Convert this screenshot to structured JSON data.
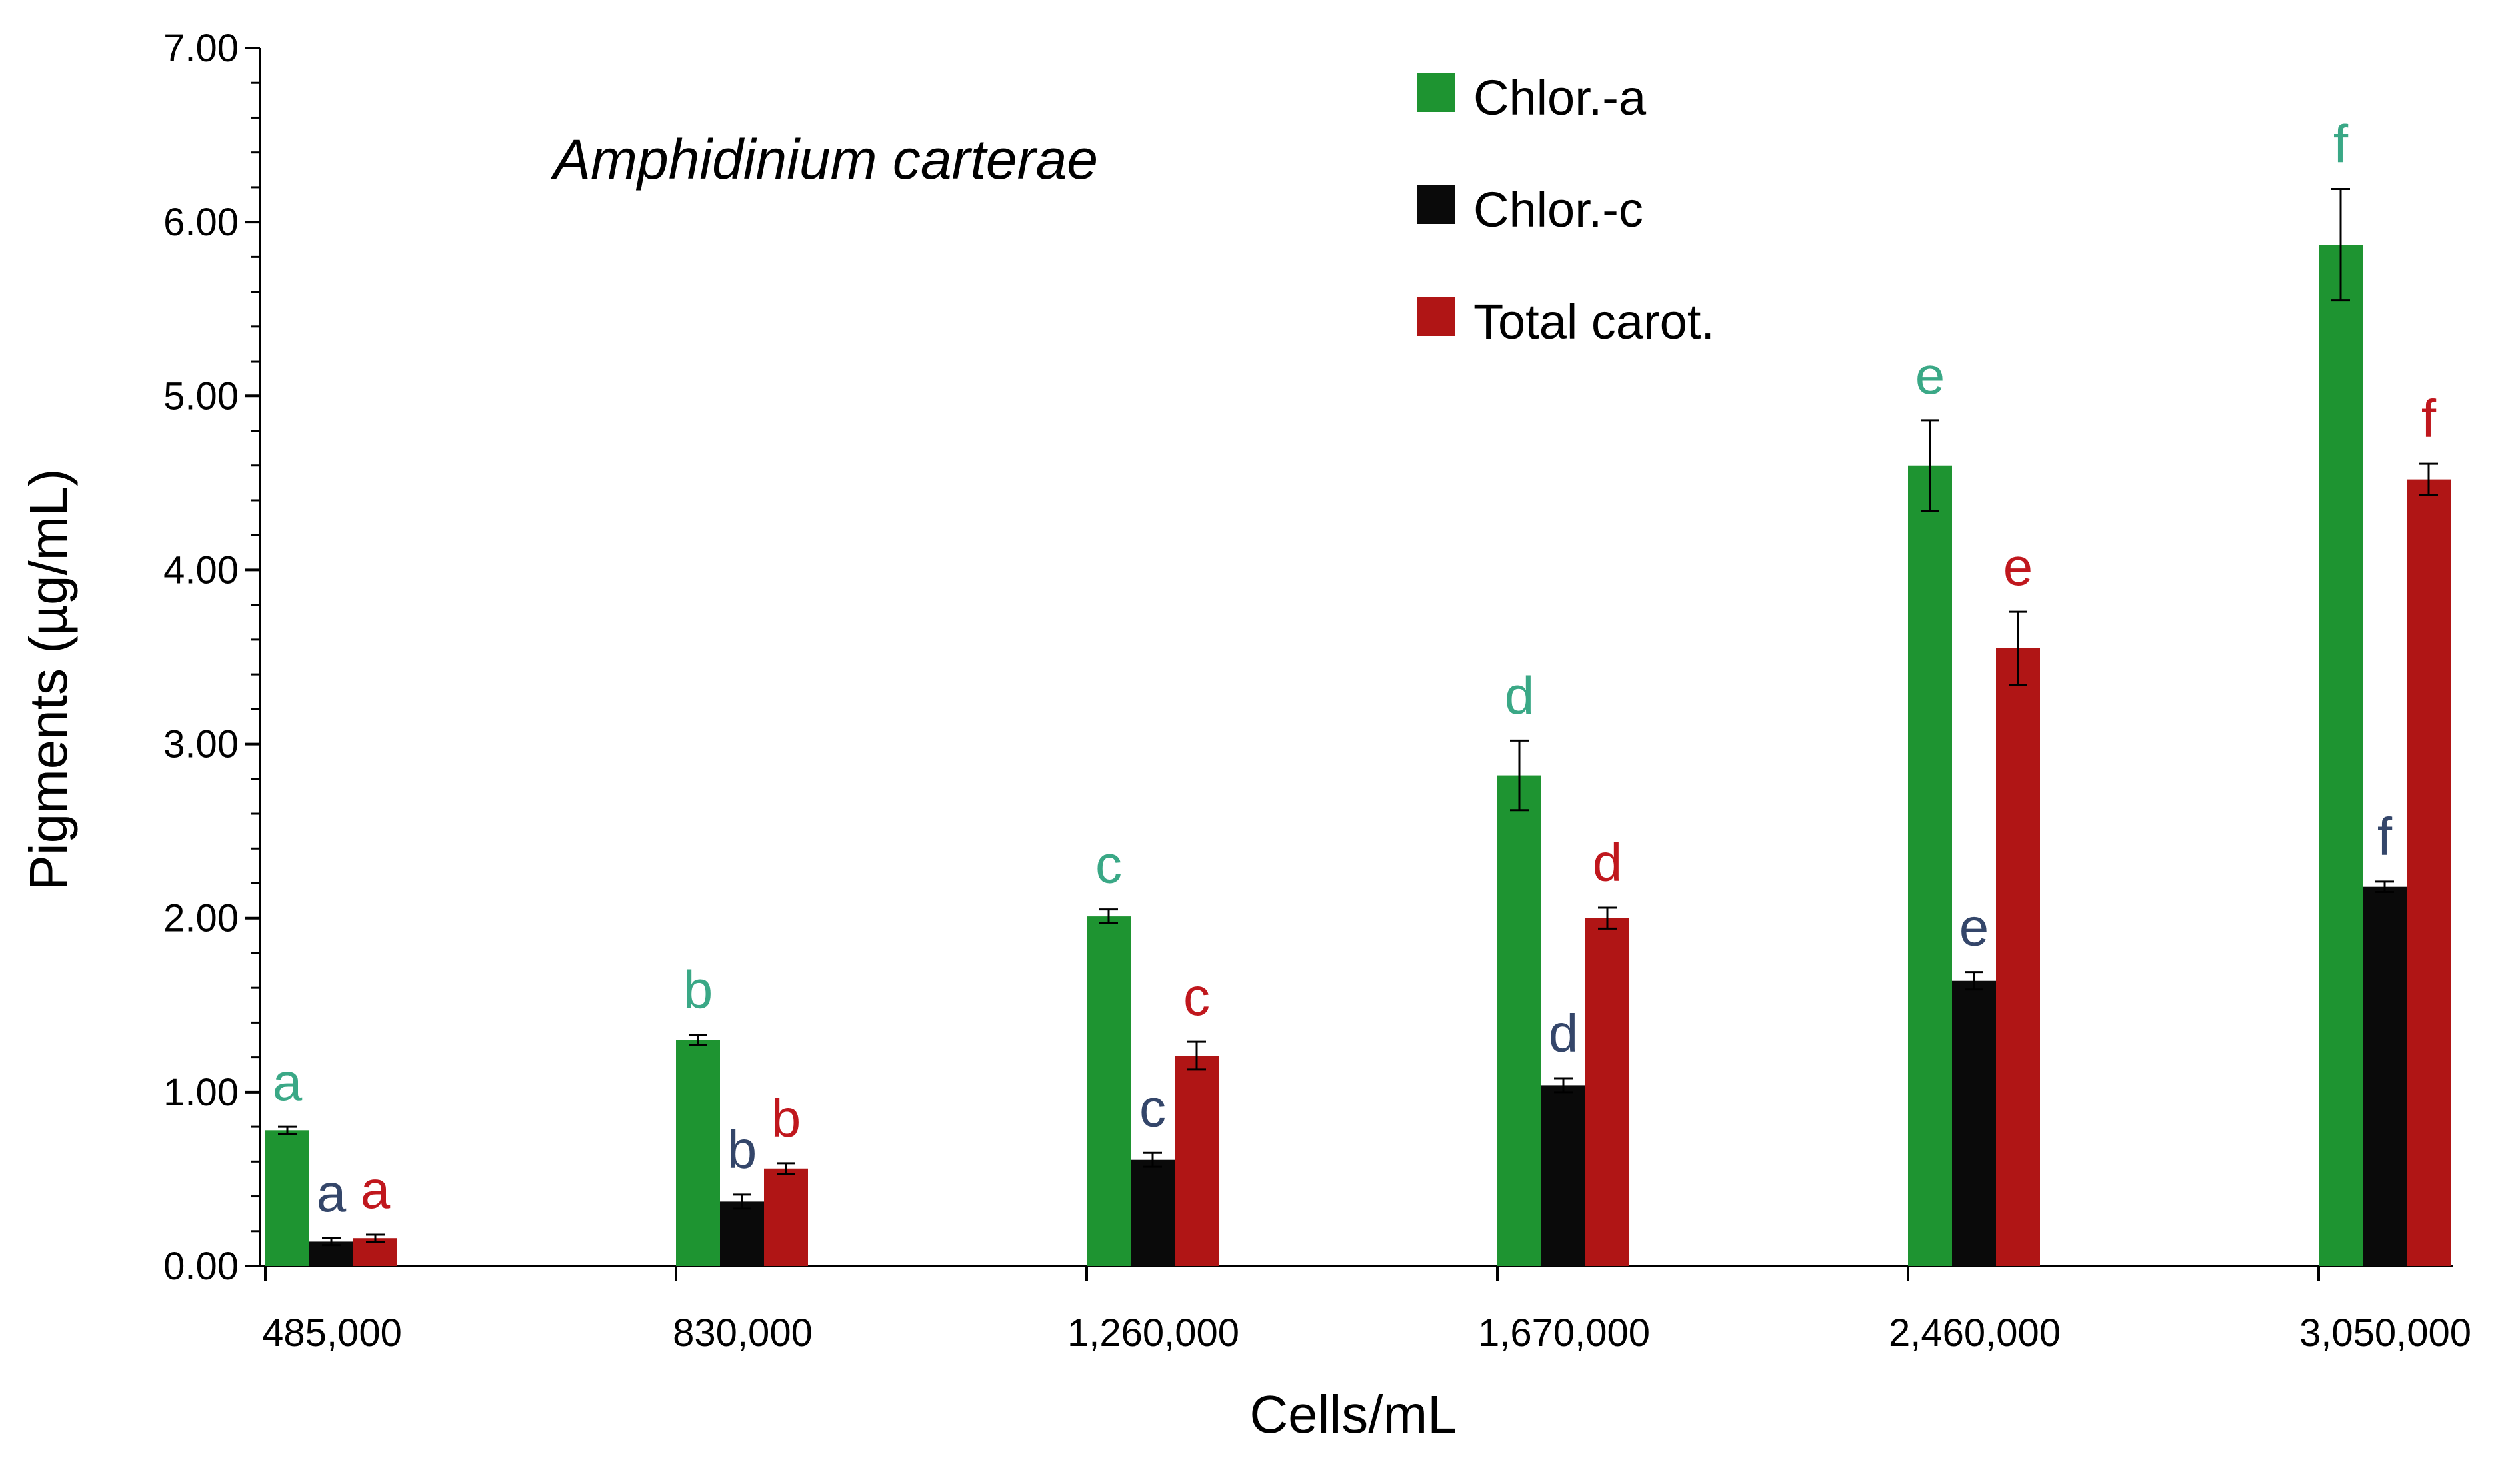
{
  "chart_data": {
    "type": "bar",
    "title": "Amphidinium carterae",
    "xlabel": "Cells/mL",
    "ylabel": "Pigments (µg/mL)",
    "ylim": [
      0,
      7
    ],
    "yticks": [
      "0.00",
      "1.00",
      "2.00",
      "3.00",
      "4.00",
      "5.00",
      "6.00",
      "7.00"
    ],
    "categories": [
      "485,000",
      "830,000",
      "1,260,000",
      "1,670,000",
      "2,460,000",
      "3,050,000"
    ],
    "legend_position": "top-right",
    "grid": false,
    "series": [
      {
        "name": "Chlor.-a",
        "color": "#1e9431",
        "label_color": "#3aa886",
        "values": [
          0.78,
          1.3,
          2.01,
          2.82,
          4.6,
          5.87
        ],
        "errors": [
          0.02,
          0.03,
          0.04,
          0.2,
          0.26,
          0.32
        ],
        "labels": [
          "a",
          "b",
          "c",
          "d",
          "e",
          "f"
        ]
      },
      {
        "name": "Chlor.-c",
        "color": "#0a0a0a",
        "label_color": "#34466a",
        "values": [
          0.14,
          0.37,
          0.61,
          1.04,
          1.64,
          2.18
        ],
        "errors": [
          0.02,
          0.04,
          0.04,
          0.04,
          0.05,
          0.03
        ],
        "labels": [
          "a",
          "b",
          "c",
          "d",
          "e",
          "f"
        ]
      },
      {
        "name": "Total carot.",
        "color": "#b01515",
        "label_color": "#c0171d",
        "values": [
          0.16,
          0.56,
          1.21,
          2.0,
          3.55,
          4.52
        ],
        "errors": [
          0.02,
          0.03,
          0.08,
          0.06,
          0.21,
          0.09
        ],
        "labels": [
          "a",
          "b",
          "c",
          "d",
          "e",
          "f"
        ]
      }
    ]
  }
}
